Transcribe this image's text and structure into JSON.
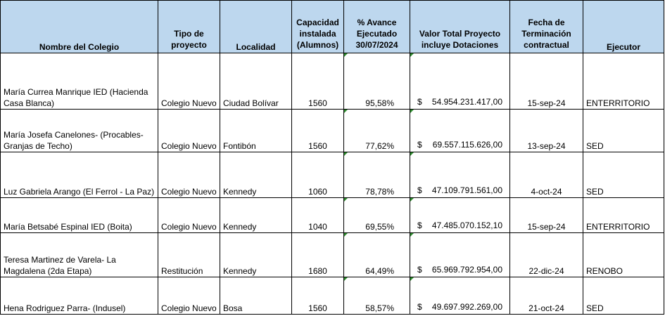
{
  "headers": {
    "nombre": "Nombre del Colegio",
    "tipo": "Tipo de proyecto",
    "localidad": "Localidad",
    "capacidad": "Capacidad instalada (Alumnos)",
    "avance": "% Avance Ejecutado 30/07/2024",
    "valor": "Valor Total Proyecto incluye Dotaciones",
    "fecha": "Fecha de Terminación contractual",
    "ejecutor": "Ejecutor"
  },
  "currency_symbol": "$",
  "rows": [
    {
      "nombre": "María Currea Manrique IED (Hacienda Casa Blanca)",
      "tipo": "Colegio Nuevo",
      "localidad": "Ciudad Bolívar",
      "capacidad": "1560",
      "avance": "95,58%",
      "valor": "54.954.231.417,00",
      "fecha": "15-sep-24",
      "ejecutor": "ENTERRITORIO"
    },
    {
      "nombre": "María Josefa Canelones- (Procables-Granjas de Techo)",
      "tipo": "Colegio Nuevo",
      "localidad": "Fontibón",
      "capacidad": "1560",
      "avance": "77,62%",
      "valor": "69.557.115.626,00",
      "fecha": "13-sep-24",
      "ejecutor": "SED"
    },
    {
      "nombre": "Luz Gabriela Arango (El Ferrol - La Paz)",
      "tipo": "Colegio Nuevo",
      "localidad": "Kennedy",
      "capacidad": "1060",
      "avance": "78,78%",
      "valor": "47.109.791.561,00",
      "fecha": "4-oct-24",
      "ejecutor": "SED"
    },
    {
      "nombre": "María Betsabé Espinal IED (Boita)",
      "tipo": "Colegio Nuevo",
      "localidad": "Kennedy",
      "capacidad": "1040",
      "avance": "69,55%",
      "valor": "47.485.070.152,10",
      "fecha": "15-sep-24",
      "ejecutor": "ENTERRITORIO"
    },
    {
      "nombre": "Teresa Martinez de Varela- La Magdalena  (2da Etapa)",
      "tipo": "Restitución",
      "localidad": "Kennedy",
      "capacidad": "1680",
      "avance": "64,49%",
      "valor": "65.969.792.954,00",
      "fecha": "22-dic-24",
      "ejecutor": "RENOBO"
    },
    {
      "nombre": "Hena Rodriguez Parra- (Indusel)",
      "tipo": "Colegio Nuevo",
      "localidad": "Bosa",
      "capacidad": "1560",
      "avance": "58,57%",
      "valor": "49.697.992.269,00",
      "fecha": "21-oct-24",
      "ejecutor": "SED"
    }
  ]
}
